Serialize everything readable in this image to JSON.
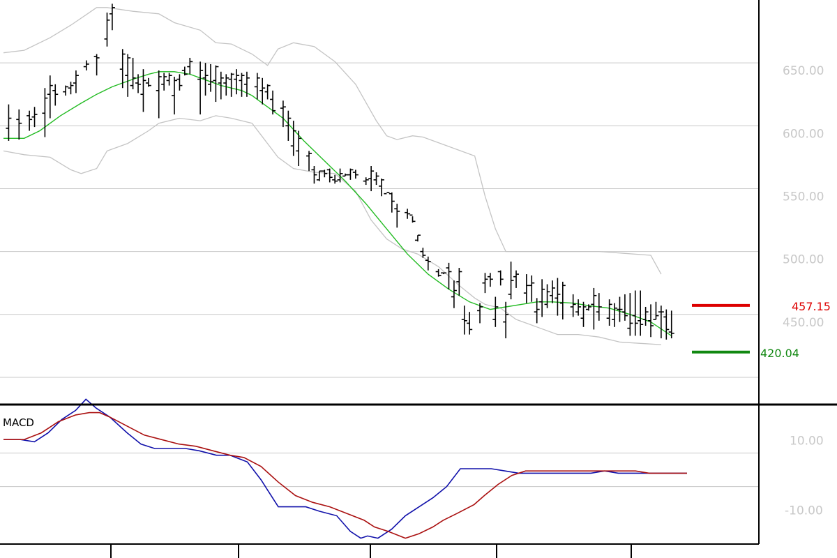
{
  "colors": {
    "background": "#ffffff",
    "grid": "#c8c8c8",
    "bands": "#c4c4c4",
    "middle_band": "#22bb22",
    "bars": "#000000",
    "macd_line": "#1010aa",
    "signal_line": "#aa1010",
    "resistance": "#dd0000",
    "support": "#118811",
    "axis_text": "#c8c8c8"
  },
  "chart_data": [
    {
      "type": "ohlc",
      "title": "",
      "indicator": "Bollinger Bands",
      "y_tick_labels": [
        "650.00",
        "600.00",
        "550.00",
        "500.00",
        "450.00"
      ],
      "y_ticks": [
        650,
        600,
        550,
        500,
        450
      ],
      "ylim": [
        380,
        700
      ],
      "grid": true,
      "x_range": [
        0,
        132
      ],
      "series": [
        {
          "name": "",
          "kind": "upper-band",
          "x": [
            0,
            4,
            9,
            13,
            18,
            20,
            25,
            30,
            33,
            38,
            41,
            44,
            48,
            51,
            53,
            56,
            60,
            64,
            68,
            72,
            74,
            76,
            79,
            81,
            91,
            93,
            95,
            97,
            103,
            107,
            111,
            115,
            125,
            127
          ],
          "y": [
            658,
            660,
            670,
            680,
            694,
            694,
            691,
            689,
            682,
            676,
            666,
            665,
            657,
            648,
            661,
            666,
            663,
            651,
            633,
            604,
            592,
            589,
            592,
            591,
            576,
            544,
            518,
            500,
            500,
            500,
            500,
            500,
            497,
            482
          ]
        },
        {
          "name": "",
          "kind": "lower-band",
          "x": [
            0,
            4,
            9,
            13,
            15,
            18,
            20,
            24,
            28,
            30,
            34,
            38,
            41,
            44,
            48,
            53,
            56,
            60,
            64,
            68,
            71,
            74,
            77,
            80,
            84,
            88,
            91,
            93,
            96,
            99,
            103,
            107,
            111,
            115,
            119,
            123,
            127
          ],
          "y": [
            580,
            577,
            575,
            565,
            562,
            566,
            580,
            586,
            596,
            602,
            606,
            604,
            608,
            606,
            602,
            575,
            566,
            563,
            562,
            548,
            525,
            510,
            502,
            498,
            488,
            473,
            463,
            458,
            455,
            446,
            440,
            434,
            434,
            432,
            428,
            427,
            426
          ]
        },
        {
          "name": "",
          "kind": "middle-band",
          "x": [
            0,
            4,
            7,
            11,
            15,
            18,
            21,
            25,
            28,
            30,
            33,
            36,
            38,
            40,
            42,
            44,
            46,
            48,
            50,
            54,
            58,
            62,
            66,
            70,
            74,
            78,
            82,
            86,
            90,
            94,
            97,
            100,
            103,
            106,
            110,
            113,
            117,
            121,
            125,
            129
          ],
          "y": [
            590,
            590,
            596,
            608,
            618,
            625,
            631,
            637,
            641,
            643,
            643,
            641,
            638,
            635,
            632,
            630,
            628,
            624,
            618,
            606,
            588,
            572,
            556,
            538,
            518,
            498,
            482,
            470,
            460,
            454,
            456,
            458,
            460,
            460,
            459,
            457,
            455,
            450,
            444,
            433
          ]
        }
      ],
      "bars": {
        "x": [
          1,
          3,
          5,
          6,
          8,
          9,
          10,
          12,
          13,
          14,
          16,
          18,
          20,
          21,
          23,
          24,
          25,
          26,
          27,
          28,
          30,
          31,
          32,
          33,
          34,
          35,
          36,
          38,
          39,
          40,
          41,
          42,
          43,
          44,
          45,
          46,
          47,
          49,
          50,
          51,
          52,
          54,
          55,
          56,
          57,
          59,
          60,
          61,
          62,
          63,
          64,
          65,
          66,
          67,
          68,
          70,
          71,
          72,
          73,
          74,
          75,
          76,
          78,
          79,
          80,
          81,
          82,
          84,
          85,
          86,
          87,
          88,
          89,
          90,
          92,
          93,
          94,
          95,
          96,
          97,
          98,
          99,
          101,
          102,
          103,
          104,
          105,
          106,
          107,
          108,
          110,
          111,
          112,
          113,
          114,
          115,
          117,
          118,
          119,
          120,
          121,
          122,
          123,
          124,
          125,
          126,
          127,
          128,
          129
        ],
        "high": [
          617,
          613,
          612,
          615,
          630,
          640,
          633,
          632,
          635,
          644,
          652,
          657,
          690,
          697,
          661,
          657,
          654,
          641,
          645,
          638,
          644,
          642,
          642,
          639,
          641,
          647,
          654,
          651,
          650,
          649,
          648,
          643,
          641,
          642,
          645,
          642,
          643,
          642,
          638,
          633,
          628,
          620,
          612,
          604,
          596,
          580,
          568,
          564,
          565,
          566,
          561,
          566,
          562,
          566,
          565,
          559,
          568,
          563,
          558,
          548,
          547,
          538,
          534,
          528,
          513,
          503,
          496,
          486,
          483,
          491,
          477,
          487,
          457,
          452,
          459,
          483,
          483,
          464,
          485,
          460,
          492,
          485,
          482,
          481,
          463,
          478,
          474,
          477,
          479,
          476,
          466,
          462,
          460,
          458,
          471,
          467,
          462,
          459,
          464,
          466,
          467,
          469,
          469,
          456,
          458,
          460,
          457,
          454,
          453
        ],
        "low": [
          588,
          589,
          596,
          599,
          591,
          606,
          616,
          624,
          625,
          626,
          644,
          640,
          663,
          676,
          630,
          623,
          629,
          626,
          611,
          631,
          606,
          628,
          632,
          609,
          628,
          640,
          641,
          609,
          624,
          627,
          619,
          621,
          624,
          623,
          625,
          623,
          623,
          621,
          617,
          621,
          609,
          599,
          588,
          576,
          568,
          564,
          554,
          556,
          559,
          555,
          554,
          555,
          560,
          557,
          558,
          553,
          548,
          553,
          544,
          548,
          531,
          519,
          526,
          523,
          508,
          495,
          485,
          480,
          482,
          470,
          455,
          465,
          434,
          434,
          443,
          467,
          472,
          440,
          473,
          431,
          462,
          471,
          459,
          460,
          443,
          448,
          455,
          459,
          449,
          446,
          448,
          449,
          440,
          453,
          438,
          445,
          441,
          440,
          444,
          445,
          433,
          433,
          433,
          441,
          432,
          446,
          431,
          430,
          431
        ],
        "open": [
          598,
          605,
          608,
          607,
          610,
          625,
          628,
          627,
          630,
          634,
          647,
          655,
          669,
          689,
          645,
          640,
          632,
          634,
          625,
          634,
          628,
          633,
          636,
          624,
          637,
          644,
          647,
          637,
          638,
          633,
          636,
          634,
          634,
          637,
          637,
          636,
          633,
          631,
          628,
          627,
          621,
          614,
          600,
          584,
          580,
          576,
          565,
          557,
          564,
          565,
          557,
          557,
          560,
          561,
          563,
          556,
          558,
          557,
          552,
          546,
          546,
          534,
          531,
          529,
          509,
          500,
          493,
          484,
          483,
          487,
          464,
          476,
          446,
          443,
          453,
          475,
          480,
          446,
          484,
          444,
          466,
          480,
          467,
          473,
          452,
          460,
          458,
          465,
          463,
          459,
          456,
          452,
          447,
          454,
          458,
          452,
          447,
          446,
          454,
          452,
          439,
          449,
          445,
          446,
          445,
          446,
          452,
          448,
          436
        ],
        "close": [
          606,
          602,
          605,
          609,
          622,
          632,
          625,
          631,
          632,
          640,
          649,
          654,
          684,
          694,
          657,
          654,
          638,
          633,
          636,
          632,
          639,
          639,
          640,
          636,
          632,
          641,
          651,
          644,
          640,
          635,
          647,
          638,
          638,
          641,
          640,
          640,
          638,
          638,
          630,
          632,
          612,
          615,
          606,
          596,
          590,
          578,
          561,
          564,
          562,
          559,
          556,
          562,
          561,
          565,
          561,
          557,
          564,
          560,
          557,
          547,
          540,
          532,
          530,
          524,
          513,
          497,
          492,
          481,
          483,
          484,
          469,
          484,
          445,
          438,
          456,
          478,
          478,
          456,
          478,
          450,
          477,
          482,
          473,
          475,
          454,
          470,
          468,
          471,
          466,
          473,
          458,
          456,
          456,
          456,
          465,
          456,
          458,
          455,
          454,
          449,
          443,
          443,
          442,
          452,
          441,
          449,
          452,
          438,
          435
        ]
      },
      "levels": [
        {
          "value": 457.15,
          "label": "457.15",
          "color": "#dd0000"
        },
        {
          "value": 420.04,
          "label": "420.04",
          "color": "#118811"
        }
      ]
    },
    {
      "type": "line",
      "title": "MACD",
      "y_tick_labels": [
        "10.00",
        "-10.00"
      ],
      "y_ticks": [
        10,
        -10
      ],
      "ylim": [
        -35,
        26
      ],
      "grid": true,
      "series": [
        {
          "name": "",
          "kind": "macd",
          "x": [
            0,
            5,
            9,
            13,
            17,
            21,
            24,
            27,
            31,
            36,
            40,
            44,
            49,
            53,
            57,
            62,
            66,
            71,
            75,
            80,
            84,
            88,
            92,
            97,
            101,
            104,
            106,
            109,
            113,
            117,
            121,
            125,
            129,
            133,
            138,
            142,
            146,
            150,
            155,
            159,
            163,
            167,
            171,
            175,
            179,
            183,
            187,
            191,
            195,
            199
          ],
          "y": [
            11,
            11,
            10,
            14,
            20,
            24,
            29,
            25,
            21,
            14,
            9,
            7,
            7,
            7,
            6,
            4,
            4,
            1,
            -7,
            -19,
            -19,
            -19,
            -21,
            -23,
            -30,
            -33,
            -32,
            -33,
            -29,
            -23,
            -19,
            -15,
            -10,
            -2,
            -2,
            -2,
            -3,
            -4,
            -4,
            -4,
            -4,
            -4,
            -4,
            -3,
            -4,
            -4,
            -4,
            -4,
            -4,
            -4
          ]
        },
        {
          "name": "",
          "kind": "signal",
          "x": [
            0,
            6,
            11,
            16,
            21,
            25,
            28,
            31,
            36,
            41,
            46,
            51,
            56,
            61,
            66,
            70,
            75,
            80,
            85,
            90,
            95,
            100,
            105,
            108,
            112,
            117,
            121,
            125,
            128,
            132,
            137,
            140,
            144,
            148,
            152,
            156,
            160,
            164,
            168,
            172,
            176,
            180,
            184,
            188,
            192,
            196,
            199
          ],
          "y": [
            11,
            11,
            14,
            19,
            22,
            23,
            23,
            21,
            17,
            13,
            11,
            9,
            8,
            6,
            4,
            3,
            -1,
            -8,
            -14,
            -17,
            -19,
            -22,
            -25,
            -28,
            -30,
            -33,
            -31,
            -28,
            -25,
            -22,
            -18,
            -14,
            -9,
            -5,
            -3,
            -3,
            -3,
            -3,
            -3,
            -3,
            -3,
            -3,
            -3,
            -4,
            -4,
            -4,
            -4
          ]
        }
      ]
    }
  ]
}
